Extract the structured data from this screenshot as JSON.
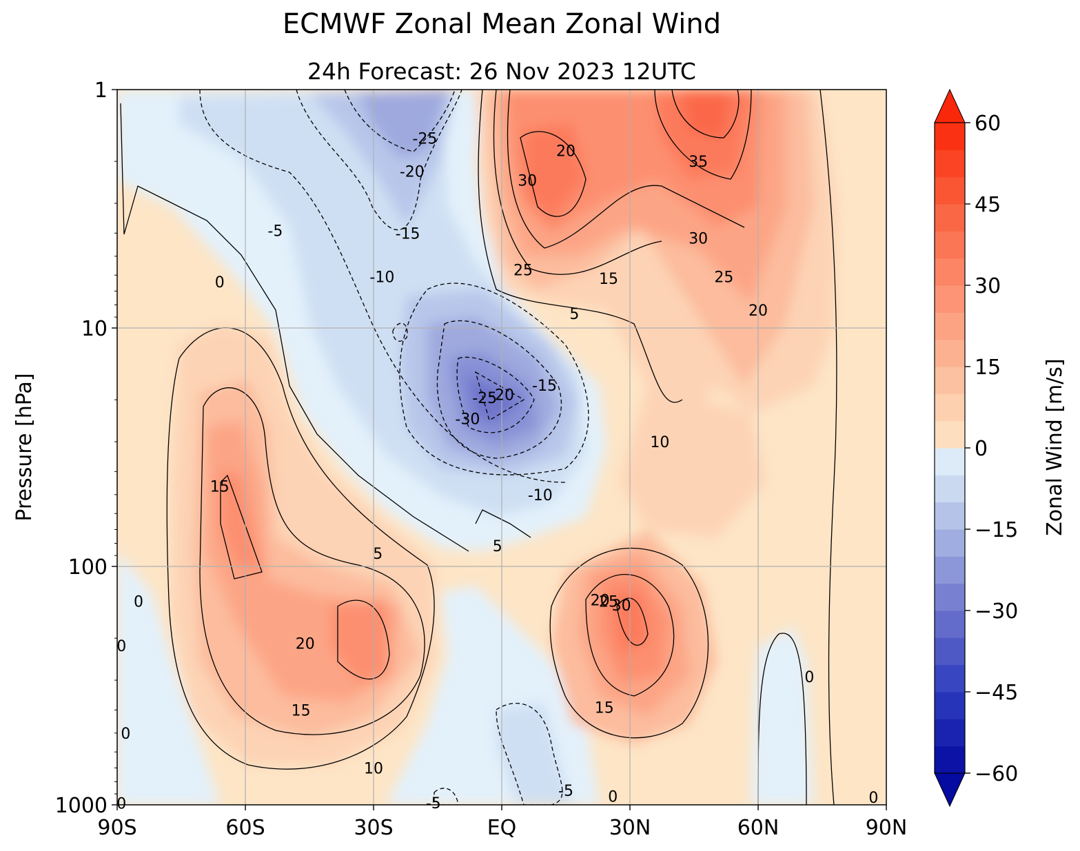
{
  "chart_data": {
    "type": "contour",
    "title": "ECMWF Zonal Mean Zonal Wind",
    "subtitle": "24h  Forecast:  26 Nov 2023  12UTC",
    "ylabel": "Pressure [hPa]",
    "colorbar_label": "Zonal Wind [m/s]",
    "x_ticks": [
      "90S",
      "60S",
      "30S",
      "EQ",
      "30N",
      "60N",
      "90N"
    ],
    "x_range": [
      -90,
      90
    ],
    "y_ticks": [
      "1",
      "10",
      "100",
      "1000"
    ],
    "y_range": [
      1000,
      1
    ],
    "y_scale": "log",
    "colorbar_ticks": [
      "60",
      "45",
      "30",
      "15",
      "0",
      "−15",
      "−30",
      "−45",
      "−60"
    ],
    "colorbar_range": [
      -60,
      60
    ],
    "colorbar_step": 5,
    "colorbar_extend": "both",
    "grid": true,
    "contour_labels": [
      {
        "text": "-25",
        "lat": -18,
        "p": 1.6
      },
      {
        "text": "-20",
        "lat": -21,
        "p": 2.2
      },
      {
        "text": "-15",
        "lat": -22,
        "p": 4.0
      },
      {
        "text": "-5",
        "lat": -53,
        "p": 3.9
      },
      {
        "text": "-10",
        "lat": -28,
        "p": 6.1
      },
      {
        "text": "0",
        "lat": -66,
        "p": 6.4
      },
      {
        "text": "20",
        "lat": 15,
        "p": 1.8
      },
      {
        "text": "30",
        "lat": 6,
        "p": 2.4
      },
      {
        "text": "35",
        "lat": 46,
        "p": 2.0
      },
      {
        "text": "30",
        "lat": 46,
        "p": 4.2
      },
      {
        "text": "25",
        "lat": 5,
        "p": 5.7
      },
      {
        "text": "15",
        "lat": 25,
        "p": 6.2
      },
      {
        "text": "25",
        "lat": 52,
        "p": 6.1
      },
      {
        "text": "5",
        "lat": 17,
        "p": 8.7
      },
      {
        "text": "20",
        "lat": 60,
        "p": 8.4
      },
      {
        "text": "-25",
        "lat": -4,
        "p": 19.6
      },
      {
        "text": "-20",
        "lat": 0,
        "p": 19.0
      },
      {
        "text": "-15",
        "lat": 10,
        "p": 17.4
      },
      {
        "text": "-30",
        "lat": -8,
        "p": 24.0
      },
      {
        "text": "10",
        "lat": 37,
        "p": 30.0
      },
      {
        "text": "15",
        "lat": -66,
        "p": 46.0
      },
      {
        "text": "-10",
        "lat": 9,
        "p": 50.0
      },
      {
        "text": "5",
        "lat": -1,
        "p": 82.0
      },
      {
        "text": "5",
        "lat": -29,
        "p": 88.0
      },
      {
        "text": "0",
        "lat": -85,
        "p": 140.0
      },
      {
        "text": "20",
        "lat": 23,
        "p": 138.0
      },
      {
        "text": "25",
        "lat": 25,
        "p": 140.0
      },
      {
        "text": "30",
        "lat": 28,
        "p": 145.0
      },
      {
        "text": "20",
        "lat": -46,
        "p": 210.0
      },
      {
        "text": "0",
        "lat": -89,
        "p": 215.0
      },
      {
        "text": "0",
        "lat": 72,
        "p": 290.0
      },
      {
        "text": "15",
        "lat": -47,
        "p": 400.0
      },
      {
        "text": "15",
        "lat": 24,
        "p": 390.0
      },
      {
        "text": "0",
        "lat": -88,
        "p": 500.0
      },
      {
        "text": "10",
        "lat": -30,
        "p": 700.0
      },
      {
        "text": "-5",
        "lat": 15,
        "p": 870.0
      },
      {
        "text": "0",
        "lat": 26,
        "p": 920.0
      },
      {
        "text": "-5",
        "lat": -16,
        "p": 980.0
      },
      {
        "text": "0",
        "lat": -89,
        "p": 985.0
      },
      {
        "text": "0",
        "lat": 87,
        "p": 930.0
      }
    ]
  }
}
